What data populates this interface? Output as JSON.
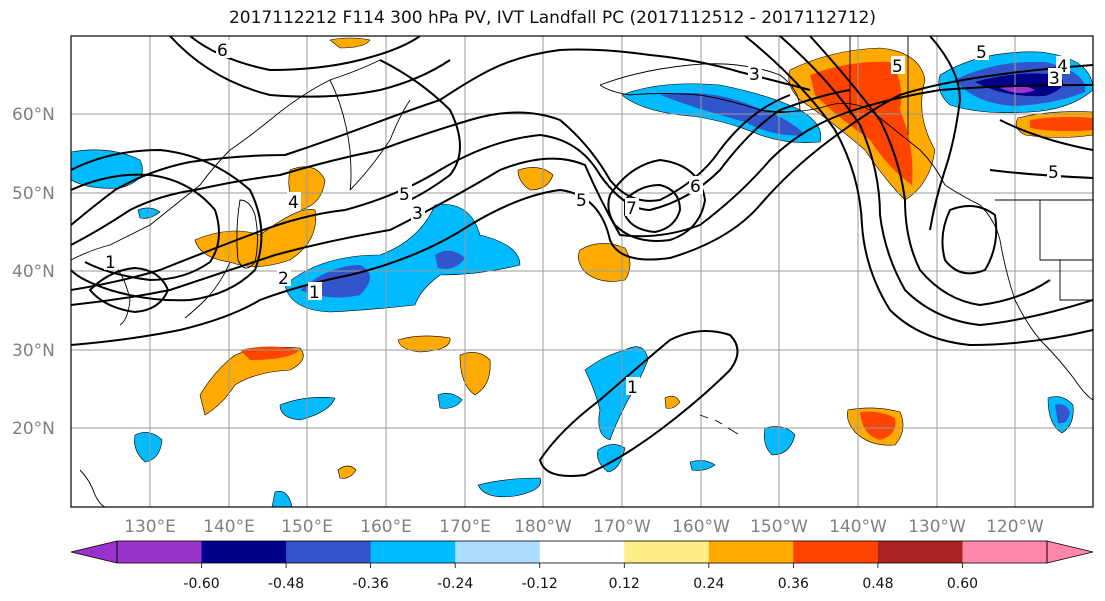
{
  "title": "2017112212 F114 300 hPa PV, IVT Landfall PC (2017112512 - 2017112712)",
  "map": {
    "lat_labels": [
      "60°N",
      "50°N",
      "40°N",
      "30°N",
      "20°N"
    ],
    "lon_labels": [
      "130°E",
      "140°E",
      "150°E",
      "160°E",
      "170°E",
      "180°W",
      "170°W",
      "160°W",
      "150°W",
      "140°W",
      "130°W",
      "120°W"
    ],
    "pv_contour_labels": [
      "6",
      "5",
      "4",
      "3",
      "2",
      "1",
      "1",
      "5",
      "6",
      "7",
      "3",
      "5",
      "5",
      "5",
      "4",
      "3",
      "1"
    ]
  },
  "colorbar": {
    "colors": [
      "#9933cc",
      "#000088",
      "#3355cc",
      "#00bbff",
      "#aaddff",
      "#ffffff",
      "#ffee88",
      "#ffaa00",
      "#ff4400",
      "#aa2222",
      "#ff88aa"
    ],
    "tick_labels": [
      "-0.60",
      "-0.48",
      "-0.36",
      "-0.24",
      "-0.12",
      "0.12",
      "0.24",
      "0.36",
      "0.48",
      "0.60"
    ]
  }
}
